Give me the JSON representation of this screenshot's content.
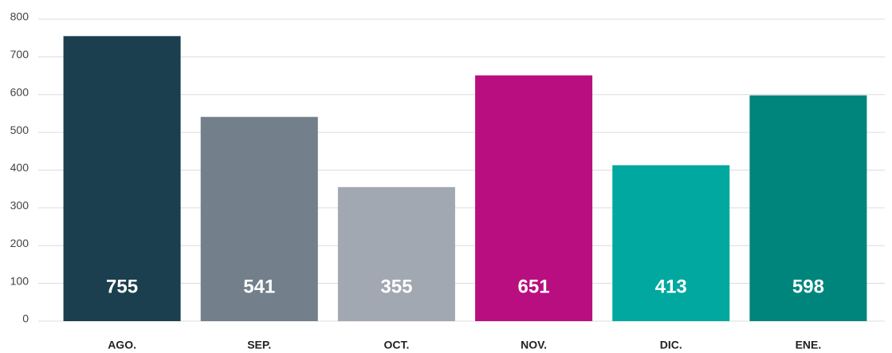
{
  "chart_data": {
    "type": "bar",
    "categories": [
      "AGO.",
      "SEP.",
      "OCT.",
      "NOV.",
      "DIC.",
      "ENE."
    ],
    "values": [
      755,
      541,
      355,
      651,
      413,
      598
    ],
    "colors": [
      "#1b3f4e",
      "#737f8a",
      "#a2a8b1",
      "#b90e7f",
      "#00a8a0",
      "#00857c"
    ],
    "ylim": [
      0,
      800
    ],
    "yticks": [
      0,
      100,
      200,
      300,
      400,
      500,
      600,
      700,
      800
    ],
    "grid": true
  }
}
